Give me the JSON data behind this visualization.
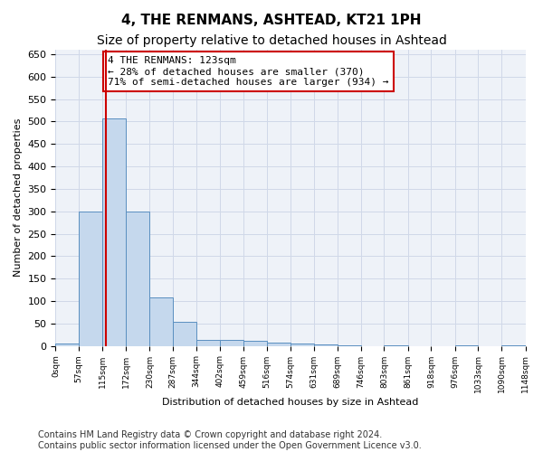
{
  "title": "4, THE RENMANS, ASHTEAD, KT21 1PH",
  "subtitle": "Size of property relative to detached houses in Ashtead",
  "xlabel": "Distribution of detached houses by size in Ashtead",
  "ylabel": "Number of detached properties",
  "bin_edges": [
    0,
    57,
    115,
    172,
    230,
    287,
    344,
    402,
    459,
    516,
    574,
    631,
    689,
    746,
    803,
    861,
    918,
    976,
    1033,
    1090,
    1148
  ],
  "tick_labels": [
    "0sqm",
    "57sqm",
    "115sqm",
    "172sqm",
    "230sqm",
    "287sqm",
    "344sqm",
    "402sqm",
    "459sqm",
    "516sqm",
    "574sqm",
    "631sqm",
    "689sqm",
    "746sqm",
    "803sqm",
    "861sqm",
    "918sqm",
    "976sqm",
    "1033sqm",
    "1090sqm",
    "1148sqm"
  ],
  "bar_heights": [
    5,
    300,
    507,
    300,
    107,
    53,
    13,
    13,
    11,
    8,
    5,
    4,
    1,
    0,
    1,
    0,
    0,
    1,
    0,
    1
  ],
  "bar_color": "#c5d8ed",
  "bar_edge_color": "#5a8fc0",
  "grid_color": "#d0d8e8",
  "background_color": "#eef2f8",
  "property_size": 123,
  "red_line_color": "#cc0000",
  "annotation_line1": "4 THE RENMANS: 123sqm",
  "annotation_line2": "← 28% of detached houses are smaller (370)",
  "annotation_line3": "71% of semi-detached houses are larger (934) →",
  "annotation_box_color": "#cc0000",
  "ylim": [
    0,
    660
  ],
  "yticks": [
    0,
    50,
    100,
    150,
    200,
    250,
    300,
    350,
    400,
    450,
    500,
    550,
    600,
    650
  ],
  "footer_text": "Contains HM Land Registry data © Crown copyright and database right 2024.\nContains public sector information licensed under the Open Government Licence v3.0.",
  "title_fontsize": 11,
  "subtitle_fontsize": 10,
  "annotation_fontsize": 8,
  "footer_fontsize": 7
}
